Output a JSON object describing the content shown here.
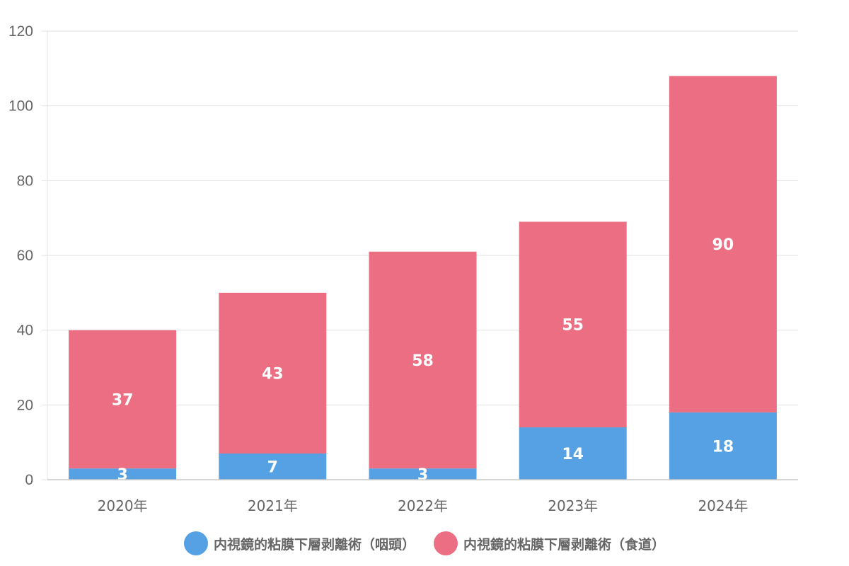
{
  "chart_data": {
    "type": "bar",
    "stacked": true,
    "title": "",
    "xlabel": "",
    "ylabel": "",
    "categories": [
      "2020年",
      "2021年",
      "2022年",
      "2023年",
      "2024年"
    ],
    "series": [
      {
        "name": "内視鏡的粘膜下層剥離術（咽頭）",
        "values": [
          3,
          7,
          3,
          14,
          18
        ],
        "color": "#56a1e3"
      },
      {
        "name": "内視鏡的粘膜下層剥離術（食道）",
        "values": [
          37,
          43,
          58,
          55,
          90
        ],
        "color": "#ec6e83"
      }
    ],
    "ylim": [
      0,
      120
    ],
    "yticks": [
      0,
      20,
      40,
      60,
      80,
      100,
      120
    ],
    "grid": true,
    "legend_position": "bottom",
    "data_labels": true
  },
  "colors": {
    "grid": "#e0e0e0",
    "axis": "#c8c8c8",
    "tick_text": "#666666",
    "data_label_text": "#ffffff"
  }
}
